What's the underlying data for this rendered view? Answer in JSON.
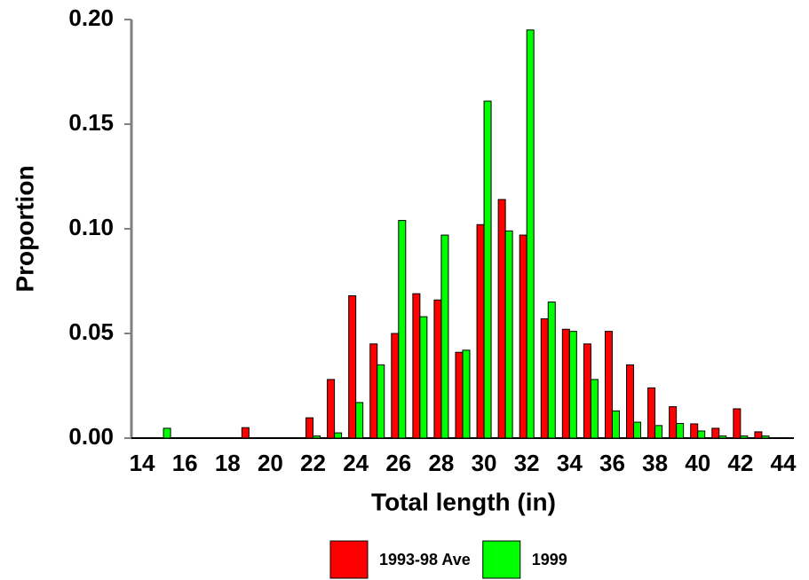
{
  "chart_data": {
    "type": "bar",
    "x_label": "Total length (in)",
    "y_label": "Proportion",
    "x": [
      14,
      15,
      16,
      17,
      18,
      19,
      20,
      21,
      22,
      23,
      24,
      25,
      26,
      27,
      28,
      29,
      30,
      31,
      32,
      33,
      34,
      35,
      36,
      37,
      38,
      39,
      40,
      41,
      42,
      43,
      44
    ],
    "xlim": [
      13.5,
      44.5
    ],
    "xticks": [
      14,
      16,
      18,
      20,
      22,
      24,
      26,
      28,
      30,
      32,
      34,
      36,
      38,
      40,
      42,
      44
    ],
    "ylim": [
      0,
      0.2
    ],
    "yticks": [
      {
        "value": 0,
        "label": "0.00"
      },
      {
        "value": 0.05,
        "label": "0.05"
      },
      {
        "value": 0.1,
        "label": "0.10"
      },
      {
        "value": 0.15,
        "label": "0.15"
      },
      {
        "value": 0.2,
        "label": "0.20"
      }
    ],
    "legend": "bottom",
    "series": [
      {
        "name": "1993-98 Ave",
        "color": "#ff0000",
        "values": [
          0,
          0,
          0,
          0,
          0,
          0.005,
          0,
          0,
          0.0097,
          0.028,
          0.068,
          0.045,
          0.05,
          0.069,
          0.066,
          0.041,
          0.102,
          0.114,
          0.097,
          0.057,
          0.052,
          0.045,
          0.051,
          0.035,
          0.024,
          0.015,
          0.0068,
          0.0047,
          0.014,
          0.003,
          0
        ]
      },
      {
        "name": "1999",
        "color": "#00ff00",
        "values": [
          0,
          0.0047,
          0,
          0,
          0,
          0,
          0,
          0,
          0.001,
          0.0025,
          0.017,
          0.035,
          0.104,
          0.058,
          0.097,
          0.042,
          0.161,
          0.099,
          0.195,
          0.065,
          0.051,
          0.028,
          0.013,
          0.0076,
          0.006,
          0.007,
          0.0034,
          0.001,
          0.001,
          0.001,
          0
        ]
      }
    ]
  }
}
